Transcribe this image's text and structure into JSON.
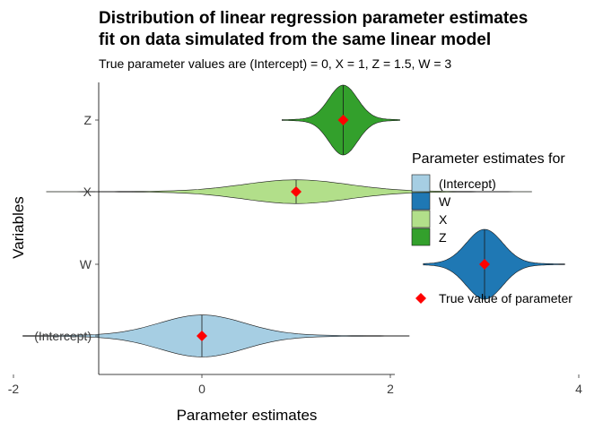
{
  "chart_data": {
    "type": "violin",
    "title_line1": "Distribution of linear regression parameter estimates",
    "title_line2": "fit on data simulated from the same linear model",
    "subtitle": "True parameter values are (Intercept) = 0, X = 1, Z = 1.5, W = 3",
    "xlabel": "Parameter estimates",
    "ylabel": "Variables",
    "xlim": [
      -2.2,
      4.2
    ],
    "x_ticks": [
      -2,
      0,
      2,
      4
    ],
    "x_tick_labels": [
      "-2",
      "0",
      "2",
      "4"
    ],
    "categories": [
      "(Intercept)",
      "W",
      "X",
      "Z"
    ],
    "grid": false,
    "legend_position": "right",
    "legend_title": "Parameter estimates for",
    "legend_entries": [
      {
        "name": "(Intercept)",
        "color": "#a6cee3"
      },
      {
        "name": "W",
        "color": "#1f78b4"
      },
      {
        "name": "X",
        "color": "#b2df8a"
      },
      {
        "name": "Z",
        "color": "#33a02c"
      }
    ],
    "true_value_label": "True value of parameter",
    "true_value_color": "#ff0000",
    "series": [
      {
        "name": "(Intercept)",
        "color": "#a6cee3",
        "true_value": 0,
        "median": 0.0,
        "min": -1.9,
        "max": 2.2,
        "mean": 0.0,
        "sd": 0.45
      },
      {
        "name": "W",
        "color": "#1f78b4",
        "true_value": 3,
        "median": 3.0,
        "min": 2.35,
        "max": 3.85,
        "mean": 3.0,
        "sd": 0.19
      },
      {
        "name": "X",
        "color": "#b2df8a",
        "true_value": 1,
        "median": 1.0,
        "min": -1.65,
        "max": 3.5,
        "mean": 1.0,
        "sd": 0.55
      },
      {
        "name": "Z",
        "color": "#33a02c",
        "true_value": 1.5,
        "median": 1.5,
        "min": 0.85,
        "max": 2.1,
        "mean": 1.5,
        "sd": 0.15
      }
    ]
  }
}
